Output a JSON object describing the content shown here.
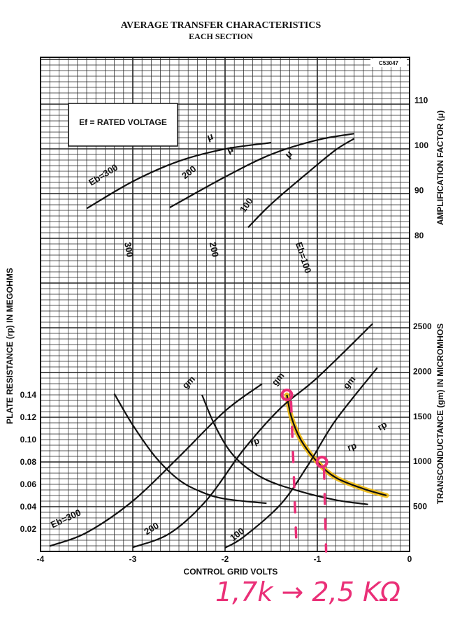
{
  "chart_data": {
    "type": "line",
    "title": "AVERAGE TRANSFER CHARACTERISTICS",
    "subtitle": "EACH SECTION",
    "drawing_code": "C53047",
    "condition_box": "Ef = RATED VOLTAGE",
    "xlabel": "CONTROL GRID VOLTS",
    "xlim": [
      -4,
      0
    ],
    "x_ticks": [
      "-4",
      "-3",
      "-2",
      "-1",
      "0"
    ],
    "left_axis": {
      "label": "PLATE RESISTANCE (rp) IN MEGOHMS",
      "range": [
        0,
        0.14
      ],
      "ticks": [
        "0.02",
        "0.04",
        "0.06",
        "0.08",
        "0.10",
        "0.12",
        "0.14"
      ]
    },
    "right_axis_mu": {
      "label": "AMPLIFICATION FACTOR (μ)",
      "range": [
        80,
        110
      ],
      "ticks": [
        "80",
        "90",
        "100",
        "110"
      ]
    },
    "right_axis_gm": {
      "label": "TRANSCONDUCTANCE (gm) IN MICROMHOS",
      "range": [
        0,
        2500
      ],
      "ticks": [
        "500",
        "1000",
        "1500",
        "2000",
        "2500"
      ]
    },
    "grid": true,
    "series": [
      {
        "family": "mu",
        "name": "Eb=300",
        "label": "μ",
        "points": [
          [
            -3.5,
            86.0
          ],
          [
            -3.0,
            92.0
          ],
          [
            -2.5,
            96.5
          ],
          [
            -2.0,
            99.2
          ],
          [
            -1.5,
            100.6
          ]
        ]
      },
      {
        "family": "mu",
        "name": "200",
        "label": "μ",
        "points": [
          [
            -2.6,
            86.2
          ],
          [
            -2.0,
            93.0
          ],
          [
            -1.5,
            98.0
          ],
          [
            -1.0,
            101.2
          ],
          [
            -0.6,
            102.6
          ]
        ]
      },
      {
        "family": "mu",
        "name": "100",
        "label": "μ",
        "points": [
          [
            -1.75,
            81.8
          ],
          [
            -1.5,
            87.0
          ],
          [
            -1.1,
            94.0
          ],
          [
            -0.8,
            99.0
          ],
          [
            -0.6,
            101.5
          ]
        ]
      },
      {
        "family": "rp",
        "name": "300",
        "label": "rp",
        "points": [
          [
            -3.2,
            0.141
          ],
          [
            -3.0,
            0.113
          ],
          [
            -2.75,
            0.084
          ],
          [
            -2.5,
            0.064
          ],
          [
            -2.25,
            0.053
          ],
          [
            -2.0,
            0.047
          ],
          [
            -1.55,
            0.043
          ]
        ]
      },
      {
        "family": "rp",
        "name": "200",
        "label": "rp",
        "points": [
          [
            -2.25,
            0.14
          ],
          [
            -2.1,
            0.111
          ],
          [
            -1.9,
            0.085
          ],
          [
            -1.6,
            0.066
          ],
          [
            -1.2,
            0.054
          ],
          [
            -0.8,
            0.046
          ],
          [
            -0.45,
            0.042
          ]
        ]
      },
      {
        "family": "rp",
        "name": "Eb=100",
        "label": "rp",
        "points": [
          [
            -1.33,
            0.14
          ],
          [
            -1.28,
            0.12
          ],
          [
            -1.18,
            0.1
          ],
          [
            -1.0,
            0.08
          ],
          [
            -0.8,
            0.066
          ],
          [
            -0.5,
            0.056
          ],
          [
            -0.25,
            0.05
          ]
        ]
      },
      {
        "family": "gm",
        "name": "Eb=300",
        "label": "gm",
        "points": [
          [
            -3.9,
            60
          ],
          [
            -3.5,
            210
          ],
          [
            -3.0,
            560
          ],
          [
            -2.5,
            1050
          ],
          [
            -2.0,
            1560
          ],
          [
            -1.6,
            1860
          ]
        ]
      },
      {
        "family": "gm",
        "name": "200",
        "label": "gm",
        "points": [
          [
            -3.0,
            45
          ],
          [
            -2.6,
            200
          ],
          [
            -2.2,
            570
          ],
          [
            -1.8,
            1130
          ],
          [
            -1.4,
            1590
          ],
          [
            -1.0,
            1930
          ],
          [
            -0.4,
            2530
          ]
        ]
      },
      {
        "family": "gm",
        "name": "100",
        "label": "gm",
        "points": [
          [
            -2.0,
            40
          ],
          [
            -1.8,
            160
          ],
          [
            -1.4,
            520
          ],
          [
            -1.1,
            960
          ],
          [
            -0.8,
            1460
          ],
          [
            -0.35,
            2040
          ]
        ]
      }
    ],
    "annotations": {
      "highlight_series": "Eb=100 rp",
      "markers": [
        [
          -1.33,
          0.14
        ],
        [
          -0.95,
          0.08
        ]
      ],
      "handwritten_note": "1,7k → 2,5 KΩ",
      "highlight_color": "#f2b800",
      "annotation_color": "#ea2f77"
    }
  }
}
